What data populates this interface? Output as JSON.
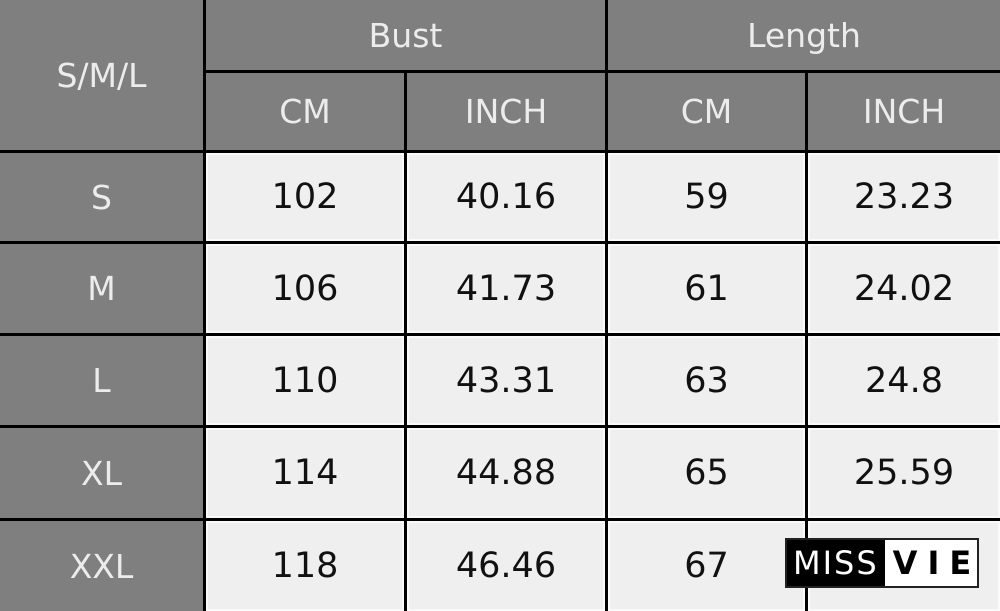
{
  "header": {
    "corner": "S/M/L",
    "groups": [
      "Bust",
      "Length"
    ],
    "units": [
      "CM",
      "INCH",
      "CM",
      "INCH"
    ]
  },
  "rows": [
    {
      "size": "S",
      "values": [
        "102",
        "40.16",
        "59",
        "23.23"
      ]
    },
    {
      "size": "M",
      "values": [
        "106",
        "41.73",
        "61",
        "24.02"
      ]
    },
    {
      "size": "L",
      "values": [
        "110",
        "43.31",
        "63",
        "24.8"
      ]
    },
    {
      "size": "XL",
      "values": [
        "114",
        "44.88",
        "65",
        "25.59"
      ]
    },
    {
      "size": "XXL",
      "values": [
        "118",
        "46.46",
        "67",
        ""
      ]
    }
  ],
  "logo": {
    "part1": "MISS",
    "part2": "VIE"
  },
  "colors": {
    "header_bg": "#7f7f7f",
    "cell_bg": "#efefef",
    "border": "#000000"
  }
}
